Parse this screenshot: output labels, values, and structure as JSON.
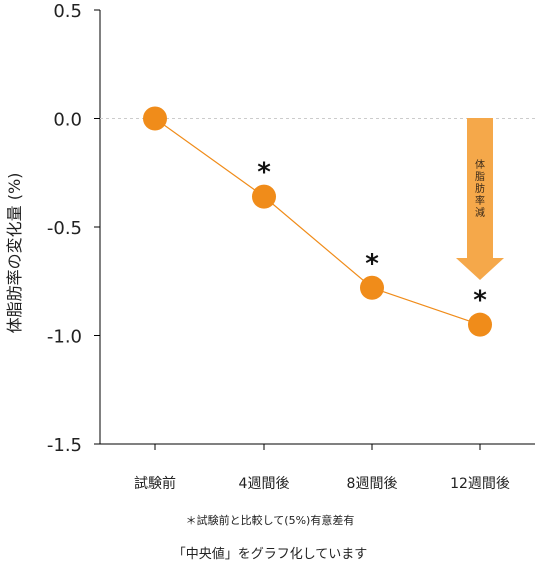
{
  "chart_data": {
    "type": "line",
    "categories": [
      "試験前",
      "4週間後",
      "8週間後",
      "12週間後"
    ],
    "values": [
      0.0,
      -0.36,
      -0.78,
      -0.95
    ],
    "significance_marker": "＊",
    "significant": [
      false,
      true,
      true,
      true
    ],
    "ylabel": "体脂肪率の変化量 (%)",
    "ylim": [
      -1.5,
      0.5
    ],
    "yticks": [
      0.5,
      0.0,
      -0.5,
      -1.0,
      -1.5
    ],
    "ytick_labels": [
      "0.5",
      "0.0",
      "-0.5",
      "-1.0",
      "-1.5"
    ],
    "zero_line": "dashed",
    "arrow_label": "体脂肪率減",
    "footnote": "＊試験前と比較して(5%)有意差有",
    "caption": "「中央値」をグラフ化しています",
    "colors": {
      "line": "#f08c1a",
      "marker": "#f08c1a",
      "arrow": "#f5a84a",
      "axis": "#000000",
      "zero_line": "#cccccc"
    }
  }
}
